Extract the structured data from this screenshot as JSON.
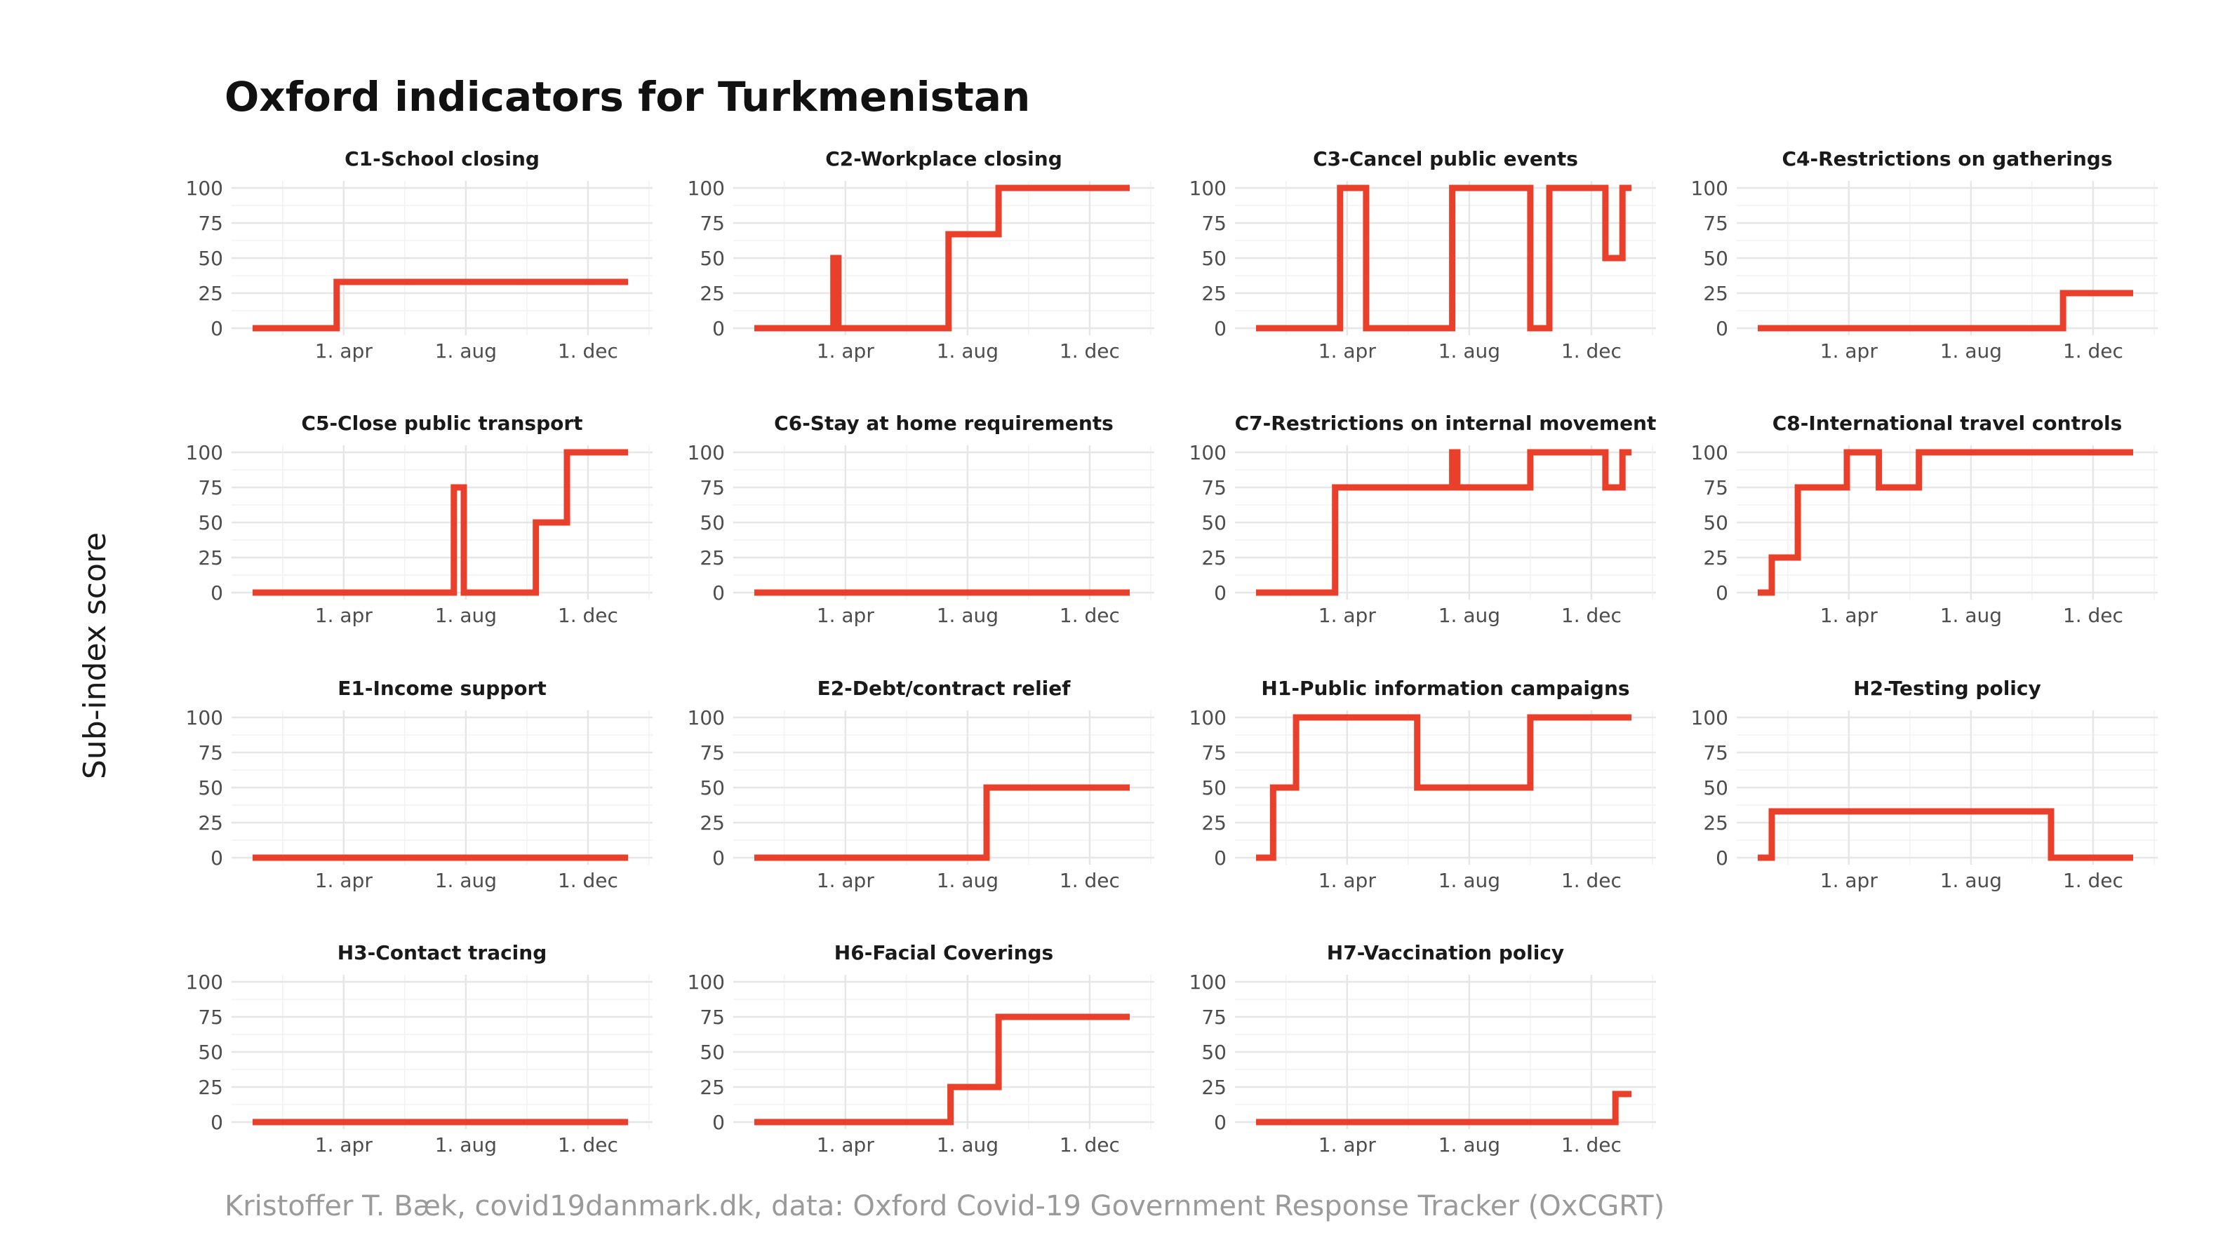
{
  "title": "Oxford indicators for Turkmenistan",
  "ylabel": "Sub-index score",
  "caption": "Kristoffer T. Bæk, covid19danmark.dk, data: Oxford Covid-19 Government Response Tracker (OxCGRT)",
  "colors": {
    "series": "#e8402a",
    "grid": "#e6e6e6",
    "text": "#4d4d4d"
  },
  "chart_data": {
    "type": "line",
    "layout": "facet-grid-4-columns",
    "step": true,
    "x_unit": "date",
    "ylim": [
      0,
      100
    ],
    "y_ticks": [
      0,
      25,
      50,
      75,
      100
    ],
    "xlim": [
      "2020-01-01",
      "2021-01-10"
    ],
    "x_ticks": [
      {
        "date": "2020-04-01",
        "label": "1. apr"
      },
      {
        "date": "2020-08-01",
        "label": "1. aug"
      },
      {
        "date": "2020-12-01",
        "label": "1. dec"
      }
    ],
    "grid": true,
    "legend": "none",
    "panels": [
      {
        "title": "C1-School closing",
        "points": [
          [
            "2020-01-01",
            0
          ],
          [
            "2020-03-25",
            33
          ],
          [
            "2021-01-10",
            33
          ]
        ]
      },
      {
        "title": "C2-Workplace closing",
        "points": [
          [
            "2020-01-01",
            0
          ],
          [
            "2020-03-20",
            50
          ],
          [
            "2020-03-25",
            0
          ],
          [
            "2020-07-13",
            67
          ],
          [
            "2020-09-01",
            100
          ],
          [
            "2021-01-10",
            100
          ]
        ]
      },
      {
        "title": "C3-Cancel public events",
        "points": [
          [
            "2020-01-01",
            0
          ],
          [
            "2020-03-25",
            100
          ],
          [
            "2020-04-20",
            0
          ],
          [
            "2020-07-15",
            100
          ],
          [
            "2020-10-01",
            0
          ],
          [
            "2020-10-20",
            100
          ],
          [
            "2020-12-15",
            50
          ],
          [
            "2021-01-01",
            100
          ],
          [
            "2021-01-10",
            100
          ]
        ]
      },
      {
        "title": "C4-Restrictions on gatherings",
        "points": [
          [
            "2020-01-01",
            0
          ],
          [
            "2020-11-01",
            25
          ],
          [
            "2021-01-10",
            25
          ]
        ]
      },
      {
        "title": "C5-Close public transport",
        "points": [
          [
            "2020-01-01",
            0
          ],
          [
            "2020-07-20",
            75
          ],
          [
            "2020-07-30",
            0
          ],
          [
            "2020-10-10",
            50
          ],
          [
            "2020-11-10",
            100
          ],
          [
            "2021-01-10",
            100
          ]
        ]
      },
      {
        "title": "C6-Stay at home requirements",
        "points": [
          [
            "2020-01-01",
            0
          ],
          [
            "2021-01-10",
            0
          ]
        ]
      },
      {
        "title": "C7-Restrictions on internal movement",
        "points": [
          [
            "2020-01-01",
            0
          ],
          [
            "2020-03-20",
            75
          ],
          [
            "2020-07-15",
            100
          ],
          [
            "2020-07-20",
            75
          ],
          [
            "2020-10-01",
            100
          ],
          [
            "2020-12-15",
            75
          ],
          [
            "2021-01-01",
            100
          ],
          [
            "2021-01-10",
            100
          ]
        ]
      },
      {
        "title": "C8-International travel controls",
        "points": [
          [
            "2020-01-01",
            0
          ],
          [
            "2020-01-15",
            25
          ],
          [
            "2020-02-10",
            75
          ],
          [
            "2020-03-30",
            100
          ],
          [
            "2020-05-01",
            75
          ],
          [
            "2020-06-10",
            100
          ],
          [
            "2021-01-10",
            100
          ]
        ]
      },
      {
        "title": "E1-Income support",
        "points": [
          [
            "2020-01-01",
            0
          ],
          [
            "2021-01-10",
            0
          ]
        ]
      },
      {
        "title": "E2-Debt/contract relief",
        "points": [
          [
            "2020-01-01",
            0
          ],
          [
            "2020-08-20",
            50
          ],
          [
            "2021-01-10",
            50
          ]
        ]
      },
      {
        "title": "H1-Public information campaigns",
        "points": [
          [
            "2020-01-01",
            0
          ],
          [
            "2020-01-18",
            50
          ],
          [
            "2020-02-10",
            100
          ],
          [
            "2020-06-10",
            50
          ],
          [
            "2020-10-01",
            100
          ],
          [
            "2021-01-10",
            100
          ]
        ]
      },
      {
        "title": "H2-Testing policy",
        "points": [
          [
            "2020-01-01",
            0
          ],
          [
            "2020-01-15",
            33
          ],
          [
            "2020-10-20",
            0
          ],
          [
            "2021-01-10",
            0
          ]
        ]
      },
      {
        "title": "H3-Contact tracing",
        "points": [
          [
            "2020-01-01",
            0
          ],
          [
            "2021-01-10",
            0
          ]
        ]
      },
      {
        "title": "H6-Facial Coverings",
        "points": [
          [
            "2020-01-01",
            0
          ],
          [
            "2020-07-15",
            25
          ],
          [
            "2020-09-01",
            75
          ],
          [
            "2021-01-10",
            75
          ]
        ]
      },
      {
        "title": "H7-Vaccination policy",
        "points": [
          [
            "2020-01-01",
            0
          ],
          [
            "2020-12-25",
            20
          ],
          [
            "2021-01-10",
            20
          ]
        ]
      }
    ]
  }
}
